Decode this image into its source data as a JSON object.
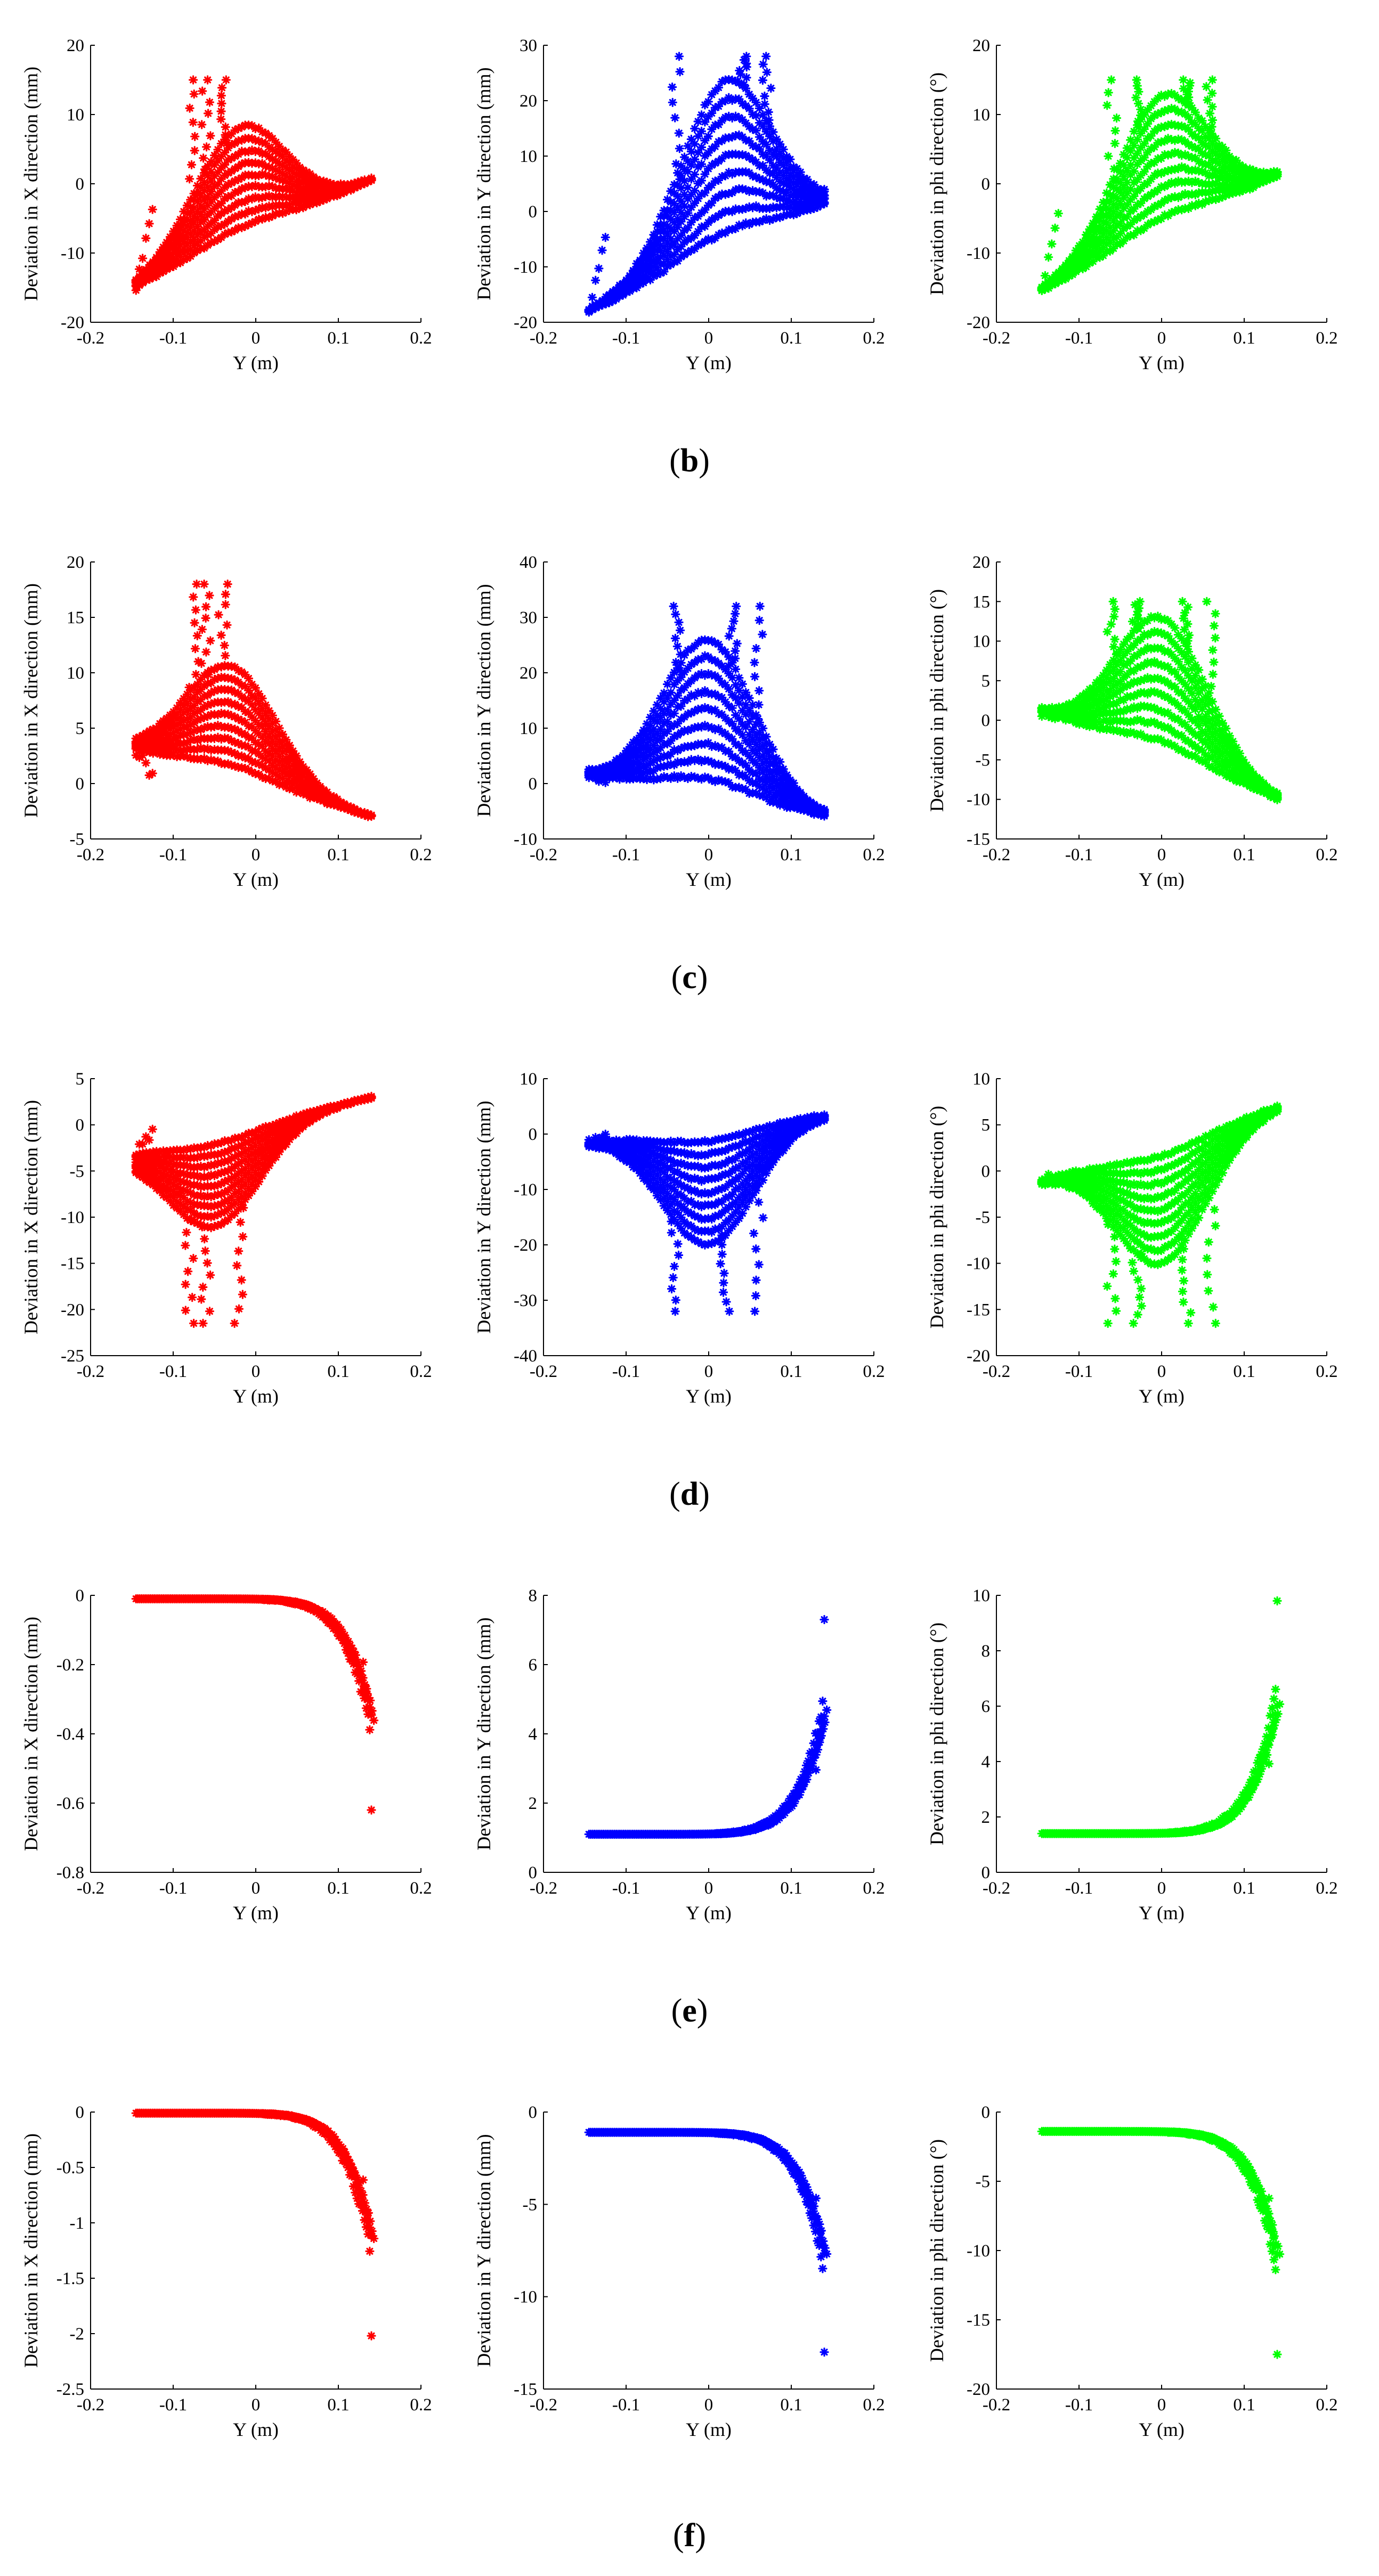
{
  "figure": {
    "captions": [
      "b",
      "c",
      "d",
      "e",
      "f"
    ],
    "common_xlabel": "Y (m)",
    "ylabels": [
      "Deviation in X direction  (mm)",
      "Deviation in Y direction  (mm)",
      "Deviation in phi direction  (°)"
    ],
    "colors": [
      "#ff0000",
      "#0000ff",
      "#00ff00"
    ]
  },
  "chart_data": [
    {
      "id": "b1",
      "row": "b",
      "col": 0,
      "type": "scatter",
      "shape": "hump",
      "color": "#ff0000",
      "xlabel": "Y (m)",
      "ylabel": "Deviation in X direction  (mm)",
      "xlim": [
        -0.2,
        0.2
      ],
      "ylim": [
        -20,
        20
      ],
      "xticks": [
        -0.2,
        -0.1,
        0,
        0.1,
        0.2
      ],
      "yticks": [
        -20,
        -10,
        0,
        10,
        20
      ],
      "series": {
        "layers": 9,
        "peak_x": -0.02,
        "peak_y": 9,
        "left_y": -15,
        "right_y": 0.5,
        "spike_y": 15,
        "spike_xs": [
          -0.075,
          -0.06,
          -0.04
        ]
      }
    },
    {
      "id": "b2",
      "row": "b",
      "col": 1,
      "type": "scatter",
      "shape": "hump",
      "color": "#0000ff",
      "xlabel": "Y (m)",
      "ylabel": "Deviation in Y direction  (mm)",
      "xlim": [
        -0.2,
        0.2
      ],
      "ylim": [
        -20,
        30
      ],
      "xticks": [
        -0.2,
        -0.1,
        0,
        0.1,
        0.2
      ],
      "yticks": [
        -20,
        -10,
        0,
        10,
        20,
        30
      ],
      "series": {
        "layers": 9,
        "peak_x": 0.02,
        "peak_y": 22,
        "left_y": -18,
        "right_y": 1,
        "spike_y": 28,
        "spike_xs": [
          -0.04,
          0.04,
          0.07
        ]
      }
    },
    {
      "id": "b3",
      "row": "b",
      "col": 2,
      "type": "scatter",
      "shape": "hump",
      "color": "#00ff00",
      "xlabel": "Y (m)",
      "ylabel": "Deviation in phi direction  (°)",
      "xlim": [
        -0.2,
        0.2
      ],
      "ylim": [
        -20,
        20
      ],
      "xticks": [
        -0.2,
        -0.1,
        0,
        0.1,
        0.2
      ],
      "yticks": [
        -20,
        -10,
        0,
        10,
        20
      ],
      "series": {
        "layers": 9,
        "peak_x": 0.0,
        "peak_y": 12.5,
        "left_y": -15.5,
        "right_y": 1,
        "spike_y": 15,
        "spike_xs": [
          -0.06,
          -0.03,
          0.03,
          0.06
        ]
      }
    },
    {
      "id": "c1",
      "row": "c",
      "col": 0,
      "type": "scatter",
      "shape": "hump",
      "color": "#ff0000",
      "xlabel": "Y (m)",
      "ylabel": "Deviation in X direction  (mm)",
      "xlim": [
        -0.2,
        0.2
      ],
      "ylim": [
        -5,
        20
      ],
      "xticks": [
        -0.2,
        -0.1,
        0,
        0.1,
        0.2
      ],
      "yticks": [
        -5,
        0,
        5,
        10,
        15,
        20
      ],
      "series": {
        "layers": 9,
        "peak_x": -0.03,
        "peak_y": 10,
        "left_y": 3,
        "right_y": -3,
        "spike_y": 18,
        "spike_xs": [
          -0.075,
          -0.06,
          -0.04
        ]
      }
    },
    {
      "id": "c2",
      "row": "c",
      "col": 1,
      "type": "scatter",
      "shape": "hump",
      "color": "#0000ff",
      "xlabel": "Y (m)",
      "ylabel": "Deviation in Y direction  (mm)",
      "xlim": [
        -0.2,
        0.2
      ],
      "ylim": [
        -10,
        40
      ],
      "xticks": [
        -0.2,
        -0.1,
        0,
        0.1,
        0.2
      ],
      "yticks": [
        -10,
        0,
        10,
        20,
        30,
        40
      ],
      "series": {
        "layers": 9,
        "peak_x": 0.0,
        "peak_y": 26,
        "left_y": 1.5,
        "right_y": -6,
        "spike_y": 32,
        "spike_xs": [
          -0.04,
          0.03,
          0.06
        ]
      }
    },
    {
      "id": "c3",
      "row": "c",
      "col": 2,
      "type": "scatter",
      "shape": "hump",
      "color": "#00ff00",
      "xlabel": "Y (m)",
      "ylabel": "Deviation in phi direction  (°)",
      "xlim": [
        -0.2,
        0.2
      ],
      "ylim": [
        -15,
        20
      ],
      "xticks": [
        -0.2,
        -0.1,
        0,
        0.1,
        0.2
      ],
      "yticks": [
        -15,
        -10,
        -5,
        0,
        5,
        10,
        15,
        20
      ],
      "series": {
        "layers": 9,
        "peak_x": 0.0,
        "peak_y": 13,
        "left_y": 1,
        "right_y": -10,
        "spike_y": 15,
        "spike_xs": [
          -0.06,
          -0.03,
          0.03,
          0.06
        ]
      }
    },
    {
      "id": "d1",
      "row": "d",
      "col": 0,
      "type": "scatter",
      "shape": "valley",
      "color": "#ff0000",
      "xlabel": "Y (m)",
      "ylabel": "Deviation in X direction  (mm)",
      "xlim": [
        -0.2,
        0.2
      ],
      "ylim": [
        -25,
        5
      ],
      "xticks": [
        -0.2,
        -0.1,
        0,
        0.1,
        0.2
      ],
      "yticks": [
        -25,
        -20,
        -15,
        -10,
        -5,
        0,
        5
      ],
      "series": {
        "layers": 9,
        "peak_x": -0.05,
        "peak_y": -10,
        "left_y": -3,
        "right_y": 3,
        "spike_y": -21.5,
        "spike_xs": [
          -0.08,
          -0.06,
          -0.02
        ]
      }
    },
    {
      "id": "d2",
      "row": "d",
      "col": 1,
      "type": "scatter",
      "shape": "valley",
      "color": "#0000ff",
      "xlabel": "Y (m)",
      "ylabel": "Deviation in Y direction  (mm)",
      "xlim": [
        -0.2,
        0.2
      ],
      "ylim": [
        -40,
        10
      ],
      "xticks": [
        -0.2,
        -0.1,
        0,
        0.1,
        0.2
      ],
      "yticks": [
        -40,
        -30,
        -20,
        -10,
        0,
        10
      ],
      "series": {
        "layers": 9,
        "peak_x": 0.0,
        "peak_y": -20,
        "left_y": -1.5,
        "right_y": 3.5,
        "spike_y": -32,
        "spike_xs": [
          -0.04,
          0.02,
          0.06
        ]
      }
    },
    {
      "id": "d3",
      "row": "d",
      "col": 2,
      "type": "scatter",
      "shape": "valley",
      "color": "#00ff00",
      "xlabel": "Y (m)",
      "ylabel": "Deviation in phi direction  (°)",
      "xlim": [
        -0.2,
        0.2
      ],
      "ylim": [
        -20,
        10
      ],
      "xticks": [
        -0.2,
        -0.1,
        0,
        0.1,
        0.2
      ],
      "yticks": [
        -20,
        -15,
        -10,
        -5,
        0,
        5,
        10
      ],
      "series": {
        "layers": 9,
        "peak_x": 0.0,
        "peak_y": -10,
        "left_y": -1,
        "right_y": 7,
        "spike_y": -16.5,
        "spike_xs": [
          -0.06,
          -0.03,
          0.03,
          0.06
        ]
      }
    },
    {
      "id": "e1",
      "row": "e",
      "col": 0,
      "type": "scatter",
      "shape": "tail",
      "color": "#ff0000",
      "xlabel": "Y (m)",
      "ylabel": "Deviation in X direction  (mm)",
      "xlim": [
        -0.2,
        0.2
      ],
      "ylim": [
        -0.8,
        0
      ],
      "xticks": [
        -0.2,
        -0.1,
        0,
        0.1,
        0.2
      ],
      "yticks": [
        -0.8,
        -0.6,
        -0.4,
        -0.2,
        0
      ],
      "series": {
        "base_y": -0.01,
        "end_y": -0.62,
        "spread": 0.015
      }
    },
    {
      "id": "e2",
      "row": "e",
      "col": 1,
      "type": "scatter",
      "shape": "tail",
      "color": "#0000ff",
      "xlabel": "Y (m)",
      "ylabel": "Deviation in Y direction  (mm)",
      "xlim": [
        -0.2,
        0.2
      ],
      "ylim": [
        0,
        8
      ],
      "xticks": [
        -0.2,
        -0.1,
        0,
        0.1,
        0.2
      ],
      "yticks": [
        0,
        2,
        4,
        6,
        8
      ],
      "series": {
        "base_y": 1.1,
        "end_y": 7.3,
        "spread": 0.35
      }
    },
    {
      "id": "e3",
      "row": "e",
      "col": 2,
      "type": "scatter",
      "shape": "tail",
      "color": "#00ff00",
      "xlabel": "Y (m)",
      "ylabel": "Deviation in phi direction  (°)",
      "xlim": [
        -0.2,
        0.2
      ],
      "ylim": [
        0,
        10
      ],
      "xticks": [
        -0.2,
        -0.1,
        0,
        0.1,
        0.2
      ],
      "yticks": [
        0,
        2,
        4,
        6,
        8,
        10
      ],
      "series": {
        "base_y": 1.4,
        "end_y": 9.8,
        "spread": 0.45
      }
    },
    {
      "id": "f1",
      "row": "f",
      "col": 0,
      "type": "scatter",
      "shape": "tail",
      "color": "#ff0000",
      "xlabel": "Y (m)",
      "ylabel": "Deviation in X direction  (mm)",
      "xlim": [
        -0.2,
        0.2
      ],
      "ylim": [
        -2.5,
        0
      ],
      "xticks": [
        -0.2,
        -0.1,
        0,
        0.1,
        0.2
      ],
      "yticks": [
        -2.5,
        -2,
        -1.5,
        -1,
        -0.5,
        0
      ],
      "series": {
        "base_y": -0.01,
        "end_y": -2.02,
        "spread": 0.03
      }
    },
    {
      "id": "f2",
      "row": "f",
      "col": 1,
      "type": "scatter",
      "shape": "tail",
      "color": "#0000ff",
      "xlabel": "Y (m)",
      "ylabel": "Deviation in Y direction  (mm)",
      "xlim": [
        -0.2,
        0.2
      ],
      "ylim": [
        -15,
        0
      ],
      "xticks": [
        -0.2,
        -0.1,
        0,
        0.1,
        0.2
      ],
      "yticks": [
        -15,
        -10,
        -5,
        0
      ],
      "series": {
        "base_y": -1.1,
        "end_y": -13,
        "spread": 0.4
      }
    },
    {
      "id": "f3",
      "row": "f",
      "col": 2,
      "type": "scatter",
      "shape": "tail",
      "color": "#00ff00",
      "xlabel": "Y (m)",
      "ylabel": "Deviation in phi direction  (°)",
      "xlim": [
        -0.2,
        0.2
      ],
      "ylim": [
        -20,
        0
      ],
      "xticks": [
        -0.2,
        -0.1,
        0,
        0.1,
        0.2
      ],
      "yticks": [
        -20,
        -15,
        -10,
        -5,
        0
      ],
      "series": {
        "base_y": -1.4,
        "end_y": -17.5,
        "spread": 0.5
      }
    }
  ]
}
